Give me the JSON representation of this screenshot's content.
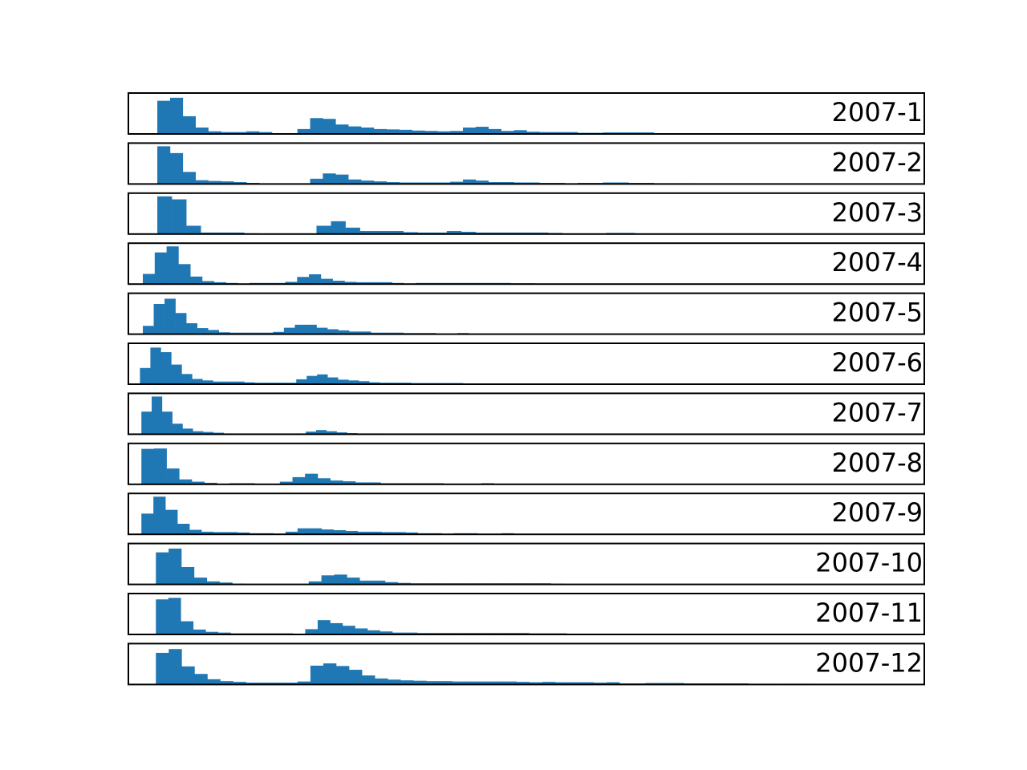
{
  "chart_data": {
    "type": "bar",
    "subtype": "histogram small multiples",
    "color": "#1f77b4",
    "axes_visible": false,
    "grid": false,
    "legend": false,
    "panels": [
      {
        "label": "2007-1",
        "x_start": 2.0,
        "bin_width": 0.88,
        "ylim": [
          0,
          10
        ],
        "values": [
          8.8,
          9.6,
          4.7,
          1.7,
          0.7,
          0.5,
          0.5,
          0.7,
          0.5,
          0.2,
          0.2,
          1.3,
          4.2,
          4.0,
          2.5,
          2.0,
          1.7,
          1.3,
          1.2,
          1.1,
          0.9,
          0.8,
          0.7,
          0.8,
          1.7,
          1.9,
          1.3,
          0.8,
          1.0,
          0.6,
          0.5,
          0.5,
          0.5,
          0.3,
          0.3,
          0.4,
          0.4,
          0.4,
          0.4,
          0.2,
          0.2,
          0.2,
          0.2,
          0.2,
          0.1
        ]
      },
      {
        "label": "2007-2",
        "x_start": 2.0,
        "bin_width": 0.88,
        "ylim": [
          0,
          10
        ],
        "values": [
          10.0,
          8.2,
          3.2,
          1.0,
          0.8,
          0.7,
          0.5,
          0.3,
          0.0,
          0.0,
          0.0,
          0.0,
          1.4,
          2.8,
          2.5,
          1.2,
          0.9,
          0.7,
          0.5,
          0.4,
          0.4,
          0.4,
          0.4,
          0.6,
          1.2,
          0.9,
          0.5,
          0.5,
          0.4,
          0.4,
          0.3,
          0.3,
          0.2,
          0.3,
          0.3,
          0.4,
          0.4,
          0.3,
          0.3,
          0.2,
          0.2,
          0.2
        ]
      },
      {
        "label": "2007-3",
        "x_start": 2.0,
        "bin_width": 1.0,
        "ylim": [
          0,
          10
        ],
        "values": [
          10.0,
          9.2,
          2.2,
          0.4,
          0.4,
          0.4,
          0.2,
          0.0,
          0.0,
          0.0,
          0.0,
          2.2,
          3.4,
          1.7,
          0.8,
          0.8,
          0.8,
          0.5,
          0.4,
          0.4,
          0.8,
          0.6,
          0.4,
          0.4,
          0.4,
          0.4,
          0.4,
          0.3,
          0.0,
          0.0,
          0.0,
          0.3,
          0.3
        ]
      },
      {
        "label": "2007-4",
        "x_start": 1.0,
        "bin_width": 0.82,
        "ylim": [
          0,
          10
        ],
        "values": [
          2.7,
          8.4,
          10.0,
          5.3,
          2.0,
          0.8,
          0.5,
          0.3,
          0.0,
          0.3,
          0.3,
          0.3,
          0.6,
          1.9,
          2.6,
          1.4,
          0.9,
          0.6,
          0.5,
          0.5,
          0.5,
          0.3,
          0.0,
          0.3,
          0.3,
          0.3,
          0.3,
          0.3,
          0.3,
          0.3,
          0.3,
          0.2,
          0.2
        ]
      },
      {
        "label": "2007-5",
        "x_start": 1.0,
        "bin_width": 0.75,
        "ylim": [
          0,
          10
        ],
        "values": [
          2.2,
          8.0,
          9.4,
          5.6,
          2.9,
          1.6,
          1.1,
          0.5,
          0.4,
          0.4,
          0.4,
          0.4,
          0.6,
          1.7,
          2.5,
          2.5,
          1.7,
          1.3,
          1.0,
          0.7,
          0.7,
          0.4,
          0.4,
          0.4,
          0.3,
          0.3,
          0.3,
          0.0,
          0.0,
          0.3
        ]
      },
      {
        "label": "2007-6",
        "x_start": 0.8,
        "bin_width": 0.72,
        "ylim": [
          0,
          10
        ],
        "values": [
          4.3,
          9.7,
          8.5,
          5.2,
          2.7,
          1.4,
          1.0,
          0.7,
          0.7,
          0.7,
          0.5,
          0.4,
          0.4,
          0.4,
          0.4,
          1.3,
          2.2,
          2.6,
          1.8,
          1.2,
          1.0,
          0.8,
          0.5,
          0.4,
          0.4,
          0.4,
          0.3,
          0.3,
          0.3,
          0.3,
          0.3,
          0.0,
          0.0,
          0.0,
          0.2,
          0.2
        ]
      },
      {
        "label": "2007-7",
        "x_start": 0.9,
        "bin_width": 0.71,
        "ylim": [
          0,
          10
        ],
        "values": [
          6.0,
          10.0,
          6.0,
          2.8,
          1.5,
          0.8,
          0.6,
          0.4,
          0.2,
          0.0,
          0.0,
          0.0,
          0.0,
          0.0,
          0.0,
          0.2,
          0.7,
          1.1,
          0.8,
          0.5,
          0.3,
          0.2,
          0.2,
          0.2
        ]
      },
      {
        "label": "2007-8",
        "x_start": 0.9,
        "bin_width": 0.87,
        "ylim": [
          0,
          10
        ],
        "values": [
          9.4,
          9.5,
          4.2,
          1.3,
          0.7,
          0.4,
          0.0,
          0.3,
          0.3,
          0.0,
          0.0,
          0.7,
          1.9,
          2.8,
          1.6,
          1.0,
          0.8,
          0.5,
          0.5,
          0.3,
          0.3,
          0.3,
          0.3,
          0.3,
          0.0,
          0.0,
          0.0,
          0.3,
          0.0,
          0.0,
          0.0,
          0.0
        ]
      },
      {
        "label": "2007-9",
        "x_start": 0.9,
        "bin_width": 0.83,
        "ylim": [
          0,
          10
        ],
        "values": [
          5.5,
          10.0,
          6.5,
          2.8,
          1.2,
          0.7,
          0.6,
          0.6,
          0.5,
          0.3,
          0.3,
          0.2,
          0.7,
          1.6,
          1.6,
          1.3,
          1.1,
          0.9,
          0.7,
          0.7,
          0.6,
          0.6,
          0.5,
          0.3,
          0.3,
          0.0,
          0.3,
          0.3,
          0.0,
          0.0,
          0.3
        ]
      },
      {
        "label": "2007-10",
        "x_start": 1.9,
        "bin_width": 0.88,
        "ylim": [
          0,
          10
        ],
        "values": [
          8.5,
          9.5,
          4.6,
          1.8,
          0.8,
          0.5,
          0.2,
          0.0,
          0.0,
          0.0,
          0.0,
          0.0,
          0.8,
          2.4,
          2.6,
          1.8,
          1.0,
          1.0,
          0.6,
          0.4,
          0.3,
          0.3,
          0.3,
          0.3,
          0.3,
          0.3,
          0.3,
          0.3,
          0.3,
          0.3,
          0.3,
          0.2
        ]
      },
      {
        "label": "2007-11",
        "x_start": 1.9,
        "bin_width": 0.86,
        "ylim": [
          0,
          10
        ],
        "values": [
          9.3,
          9.7,
          3.5,
          1.3,
          0.7,
          0.5,
          0.3,
          0.3,
          0.3,
          0.3,
          0.3,
          0.0,
          1.4,
          3.8,
          3.0,
          2.3,
          1.6,
          1.1,
          0.8,
          0.5,
          0.5,
          0.4,
          0.4,
          0.4,
          0.4,
          0.4,
          0.4,
          0.4,
          0.4,
          0.4,
          0.3,
          0.3,
          0.3,
          0.2,
          0.0,
          0.0,
          0.0,
          0.0,
          0.0,
          0.2,
          0.2,
          0.2
        ]
      },
      {
        "label": "2007-12",
        "x_start": 1.9,
        "bin_width": 0.89,
        "ylim": [
          0,
          10
        ],
        "values": [
          8.4,
          9.4,
          4.8,
          2.8,
          1.4,
          0.9,
          0.7,
          0.5,
          0.5,
          0.5,
          0.5,
          0.8,
          5.0,
          5.6,
          4.9,
          3.9,
          2.4,
          1.6,
          1.3,
          1.1,
          1.0,
          0.9,
          0.9,
          0.8,
          0.8,
          0.8,
          0.8,
          0.8,
          0.7,
          0.6,
          0.7,
          0.6,
          0.6,
          0.6,
          0.5,
          0.6,
          0.3,
          0.3,
          0.4,
          0.4,
          0.4,
          0.3,
          0.3,
          0.3,
          0.3,
          0.3,
          0.2,
          0.2,
          0.2,
          0.2,
          0.2
        ]
      }
    ]
  }
}
